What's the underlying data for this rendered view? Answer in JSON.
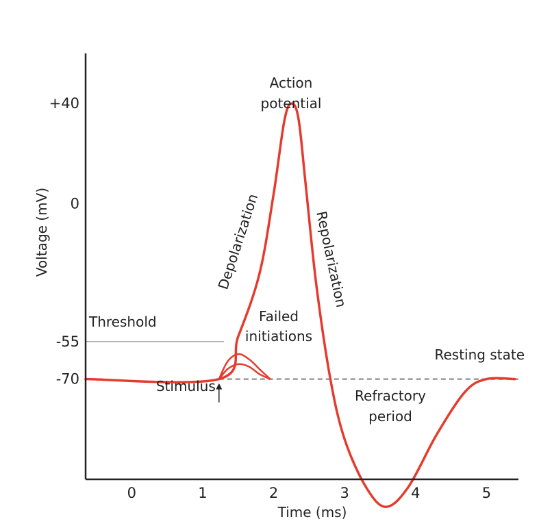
{
  "chart_data": {
    "type": "line",
    "title": "",
    "xlabel": "Time (ms)",
    "ylabel": "Voltage (mV)",
    "xlim": [
      -0.65,
      5.45
    ],
    "ylim": [
      -110,
      60
    ],
    "x_ticks": [
      0,
      1,
      2,
      3,
      4,
      5
    ],
    "y_ticks": [
      {
        "value": 40,
        "label": "+40"
      },
      {
        "value": 0,
        "label": "0"
      },
      {
        "value": -55,
        "label": "-55"
      },
      {
        "value": -70,
        "label": "-70"
      }
    ],
    "grid": false,
    "threshold": {
      "value": -55,
      "label": "Threshold",
      "x_start": -0.65,
      "x_end": 1.3
    },
    "resting": {
      "value": -70,
      "label": "Resting state"
    },
    "stimulus": {
      "x": 1.23,
      "label": "Stimulus"
    },
    "series": [
      {
        "name": "Action potential",
        "color": "#e53b2e",
        "x": [
          -0.65,
          1.23,
          1.5,
          1.8,
          2.0,
          2.15,
          2.25,
          2.35,
          2.45,
          2.6,
          2.8,
          3.0,
          3.3,
          3.58,
          3.9,
          4.3,
          4.7,
          5.0,
          5.4
        ],
        "y": [
          -70,
          -70,
          -53,
          -28,
          4,
          33,
          40,
          34,
          8,
          -32,
          -70,
          -94,
          -113,
          -121,
          -113,
          -92,
          -75,
          -70,
          -70
        ]
      },
      {
        "name": "Failed initiation 1",
        "color": "#e53b2e",
        "x": [
          1.23,
          1.35,
          1.5,
          1.65,
          1.8,
          1.95
        ],
        "y": [
          -70,
          -63,
          -60,
          -62,
          -66,
          -70
        ]
      },
      {
        "name": "Failed initiation 2",
        "color": "#e53b2e",
        "x": [
          1.23,
          1.35,
          1.5,
          1.65,
          1.8,
          1.95
        ],
        "y": [
          -70,
          -66,
          -64,
          -65,
          -68,
          -70
        ]
      }
    ],
    "annotations": [
      {
        "lines": [
          "Action",
          "potential"
        ]
      },
      {
        "lines": [
          "Depolarization"
        ]
      },
      {
        "lines": [
          "Repolarization"
        ]
      },
      {
        "lines": [
          "Failed",
          "initiations"
        ]
      },
      {
        "lines": [
          "Refractory",
          "period"
        ]
      }
    ],
    "colors": {
      "curve": "#e53b2e",
      "axis": "#222222",
      "threshold_line": "#aaaaaa",
      "resting_dashed": "#9a9a9a"
    }
  }
}
